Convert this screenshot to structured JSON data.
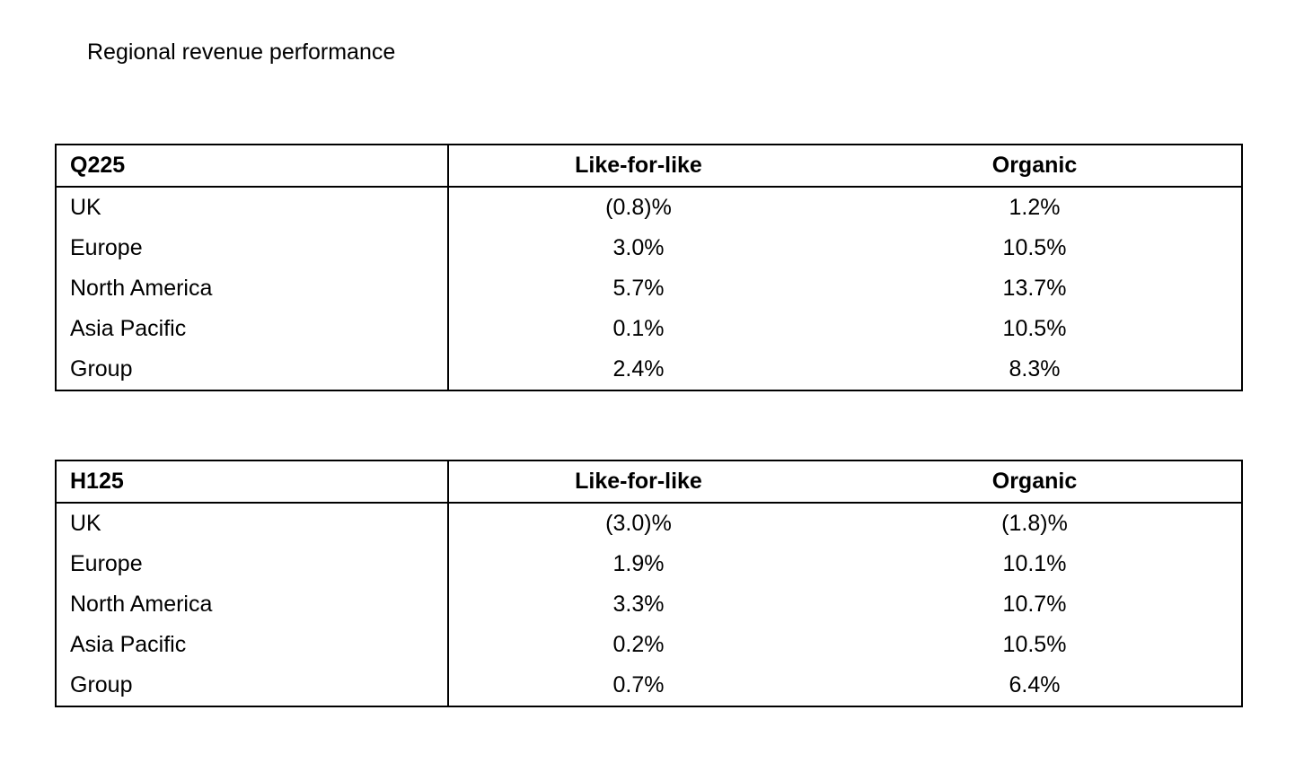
{
  "header": {
    "title": "Regional revenue performance"
  },
  "tables": [
    {
      "headers": [
        "Q225",
        "Like-for-like",
        "Organic"
      ],
      "rows": [
        [
          "UK",
          "(0.8)%",
          "1.2%"
        ],
        [
          "Europe",
          "3.0%",
          "10.5%"
        ],
        [
          "North America",
          "5.7%",
          "13.7%"
        ],
        [
          "Asia Pacific",
          "0.1%",
          "10.5%"
        ],
        [
          "Group",
          "2.4%",
          "8.3%"
        ]
      ]
    },
    {
      "headers": [
        "H125",
        "Like-for-like",
        "Organic"
      ],
      "rows": [
        [
          "UK",
          "(3.0)%",
          "(1.8)%"
        ],
        [
          "Europe",
          "1.9%",
          "10.1%"
        ],
        [
          "North America",
          "3.3%",
          "10.7%"
        ],
        [
          "Asia Pacific",
          "0.2%",
          "10.5%"
        ],
        [
          "Group",
          "0.7%",
          "6.4%"
        ]
      ]
    }
  ]
}
